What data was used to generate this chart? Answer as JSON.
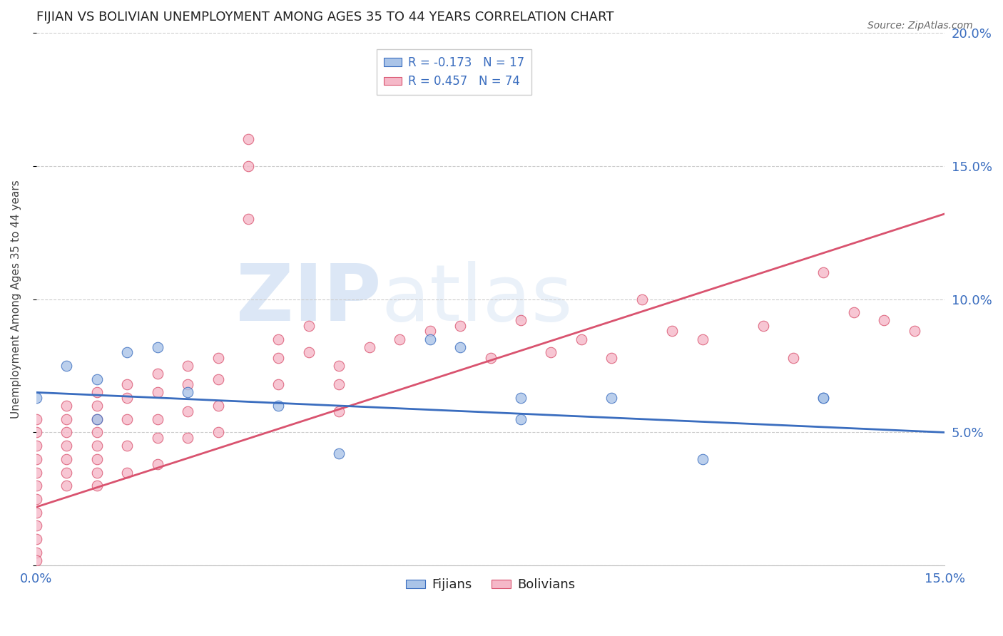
{
  "title": "FIJIAN VS BOLIVIAN UNEMPLOYMENT AMONG AGES 35 TO 44 YEARS CORRELATION CHART",
  "source_text": "Source: ZipAtlas.com",
  "ylabel": "Unemployment Among Ages 35 to 44 years",
  "xlim": [
    0.0,
    0.15
  ],
  "ylim": [
    0.0,
    0.2
  ],
  "fijian_R": -0.173,
  "fijian_N": 17,
  "bolivian_R": 0.457,
  "bolivian_N": 74,
  "fijian_color": "#aac4e8",
  "bolivian_color": "#f5b8c8",
  "fijian_line_color": "#3a6dbf",
  "bolivian_line_color": "#d9536f",
  "fijian_line_start_y": 0.065,
  "fijian_line_end_y": 0.05,
  "bolivian_line_start_y": 0.022,
  "bolivian_line_end_y": 0.132,
  "fijian_x": [
    0.0,
    0.005,
    0.01,
    0.01,
    0.015,
    0.02,
    0.025,
    0.04,
    0.05,
    0.065,
    0.07,
    0.08,
    0.08,
    0.095,
    0.11,
    0.13,
    0.13
  ],
  "fijian_y": [
    0.063,
    0.075,
    0.07,
    0.055,
    0.08,
    0.082,
    0.065,
    0.06,
    0.042,
    0.085,
    0.082,
    0.063,
    0.055,
    0.063,
    0.04,
    0.063,
    0.063
  ],
  "bolivian_x": [
    0.0,
    0.0,
    0.0,
    0.0,
    0.0,
    0.0,
    0.0,
    0.0,
    0.0,
    0.0,
    0.0,
    0.0,
    0.005,
    0.005,
    0.005,
    0.005,
    0.005,
    0.005,
    0.005,
    0.01,
    0.01,
    0.01,
    0.01,
    0.01,
    0.01,
    0.01,
    0.01,
    0.015,
    0.015,
    0.015,
    0.015,
    0.015,
    0.02,
    0.02,
    0.02,
    0.02,
    0.02,
    0.025,
    0.025,
    0.025,
    0.025,
    0.03,
    0.03,
    0.03,
    0.03,
    0.035,
    0.035,
    0.035,
    0.04,
    0.04,
    0.04,
    0.045,
    0.045,
    0.05,
    0.05,
    0.05,
    0.055,
    0.06,
    0.065,
    0.07,
    0.075,
    0.08,
    0.085,
    0.09,
    0.095,
    0.1,
    0.105,
    0.11,
    0.12,
    0.125,
    0.13,
    0.135,
    0.14,
    0.145
  ],
  "bolivian_y": [
    0.055,
    0.05,
    0.045,
    0.04,
    0.035,
    0.03,
    0.025,
    0.02,
    0.015,
    0.01,
    0.005,
    0.002,
    0.06,
    0.055,
    0.05,
    0.045,
    0.04,
    0.035,
    0.03,
    0.065,
    0.06,
    0.055,
    0.05,
    0.045,
    0.04,
    0.035,
    0.03,
    0.068,
    0.063,
    0.055,
    0.045,
    0.035,
    0.072,
    0.065,
    0.055,
    0.048,
    0.038,
    0.075,
    0.068,
    0.058,
    0.048,
    0.078,
    0.07,
    0.06,
    0.05,
    0.16,
    0.15,
    0.13,
    0.085,
    0.078,
    0.068,
    0.09,
    0.08,
    0.075,
    0.068,
    0.058,
    0.082,
    0.085,
    0.088,
    0.09,
    0.078,
    0.092,
    0.08,
    0.085,
    0.078,
    0.1,
    0.088,
    0.085,
    0.09,
    0.078,
    0.11,
    0.095,
    0.092,
    0.088
  ]
}
